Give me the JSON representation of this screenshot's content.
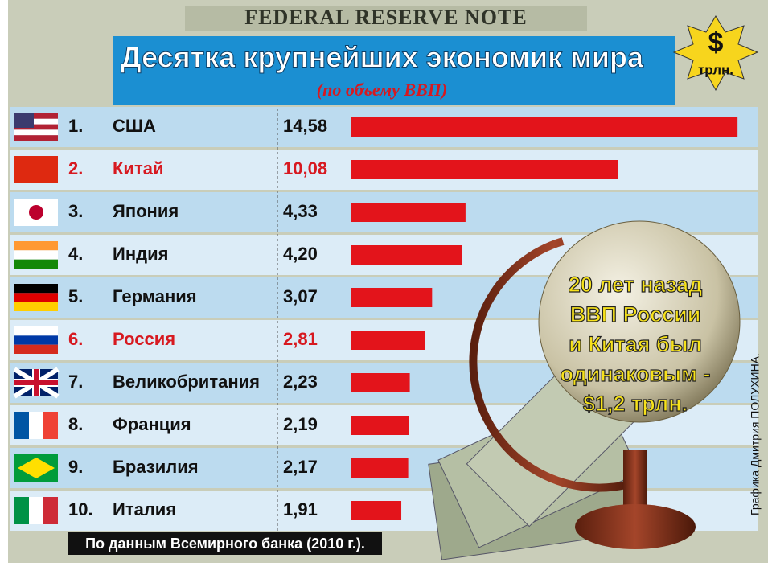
{
  "chart_data": {
    "type": "bar",
    "banner": "FEDERAL RESERVE NOTE",
    "title": "Десятка крупнейших экономик мира",
    "subtitle": "(по объему ВВП)",
    "badge": [
      "$",
      "трлн."
    ],
    "ranks": [
      "1.",
      "2.",
      "3.",
      "4.",
      "5.",
      "6.",
      "7.",
      "8.",
      "9.",
      "10."
    ],
    "categories": [
      "США",
      "Китай",
      "Япония",
      "Индия",
      "Германия",
      "Россия",
      "Великобритания",
      "Франция",
      "Бразилия",
      "Италия"
    ],
    "values": [
      14.58,
      10.08,
      4.33,
      4.2,
      3.07,
      2.81,
      2.23,
      2.19,
      2.17,
      1.91
    ],
    "value_labels": [
      "14,58",
      "10,08",
      "4,33",
      "4,20",
      "3,07",
      "2,81",
      "2,23",
      "2,19",
      "2,17",
      "1,91"
    ],
    "color": "#e3141b",
    "label_colors": [
      "#111",
      "#d71920",
      "#111",
      "#111",
      "#111",
      "#d71920",
      "#111",
      "#111",
      "#111",
      "#111"
    ],
    "annotation": [
      "20 лет назад",
      "ВВП России",
      "и Китая был",
      "одинаковым -",
      "$1,2 трлн."
    ],
    "source": "По данным Всемирного банка (2010 г.).",
    "credit": "Графика Дмитрия ПОЛУХИНА."
  }
}
